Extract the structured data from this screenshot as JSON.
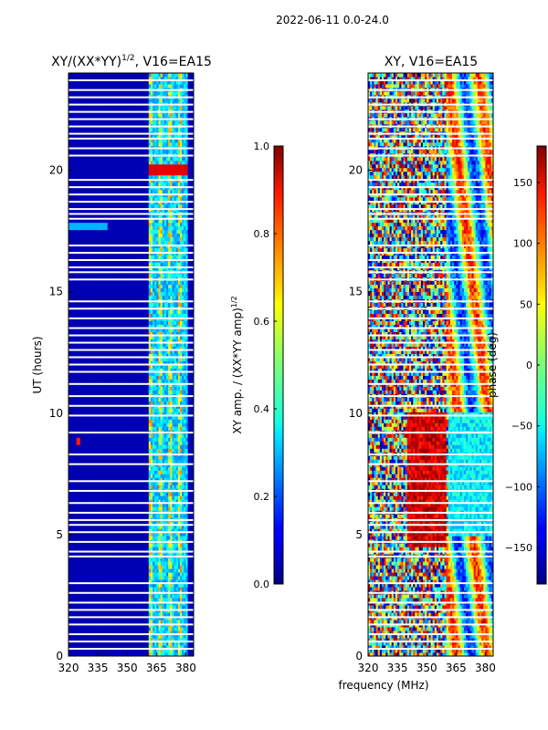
{
  "chart_data": {
    "suptitle": "2022-06-11 0.0-24.0",
    "shared_xlabel": "frequency (MHz)",
    "panels": [
      {
        "type": "heatmap",
        "title": "XY/(XX*YY)",
        "title_superscript": "1/2",
        "title_suffix": ", V16=EA15",
        "ylabel": "UT (hours)",
        "xlim": [
          320,
          384
        ],
        "ylim": [
          0,
          24
        ],
        "xticks": [
          320,
          335,
          350,
          365,
          380
        ],
        "yticks": [
          0,
          5,
          10,
          15,
          20
        ],
        "colormap": "jet",
        "colorbar": {
          "label": "XY amp. / (XX*YY amp)",
          "label_superscript": "1/2",
          "min": 0.0,
          "max": 1.0,
          "ticks": [
            "0.0",
            "0.2",
            "0.4",
            "0.6",
            "0.8",
            "1.0"
          ],
          "tick_values": [
            0.0,
            0.2,
            0.4,
            0.6,
            0.8,
            1.0
          ]
        },
        "background_value": 0.05,
        "features": [
          {
            "description": "bright vertical bands of elevated amplitude",
            "freq_start": 361,
            "freq_end": 381,
            "amplitude_range": [
              0.25,
              0.75
            ]
          },
          {
            "description": "high amplitude burst",
            "freq_start": 361,
            "freq_end": 381,
            "time_start": 19.8,
            "time_end": 20.3,
            "amplitude": 0.9
          },
          {
            "description": "broadband enhancement",
            "freq_start": 320,
            "freq_end": 340,
            "time_start": 17.5,
            "time_end": 17.9,
            "amplitude": 0.3
          },
          {
            "description": "narrow spike",
            "freq": 325,
            "time": 8.9,
            "amplitude": 0.85
          }
        ],
        "flagged_gaps_hours": [
          23.7,
          23.3,
          23.0,
          22.7,
          22.4,
          22.1,
          21.8,
          21.5,
          21.3,
          20.9,
          20.6,
          19.6,
          19.3,
          19.0,
          18.7,
          18.4,
          18.2,
          18.0,
          16.9,
          16.6,
          16.3,
          16.0,
          15.8,
          15.5,
          14.6,
          14.3,
          13.9,
          13.5,
          13.2,
          12.9,
          12.6,
          12.3,
          12.0,
          11.7,
          11.2,
          10.7,
          10.3,
          9.9,
          9.2,
          8.3,
          7.9,
          7.2,
          6.8,
          6.3,
          5.9,
          5.6,
          5.4,
          5.1,
          4.7,
          4.3,
          4.1,
          3.0,
          2.6,
          2.2,
          1.9,
          1.6,
          1.3,
          0.9,
          0.6,
          0.3
        ]
      },
      {
        "type": "heatmap",
        "title": "XY, V16=EA15",
        "ylabel": "",
        "xlim": [
          320,
          384
        ],
        "ylim": [
          0,
          24
        ],
        "xticks": [
          320,
          335,
          350,
          365,
          380
        ],
        "yticks": [
          0,
          5,
          10,
          15,
          20
        ],
        "colormap": "jet",
        "colorbar": {
          "label": "phase (deg)",
          "min": -180,
          "max": 180,
          "ticks": [
            "−150",
            "−100",
            "−50",
            "0",
            "50",
            "100",
            "150"
          ],
          "tick_values": [
            -150,
            -100,
            -50,
            0,
            50,
            100,
            150
          ]
        },
        "features": [
          {
            "description": "phase noise across full band with structured regions above 360 MHz"
          },
          {
            "description": "red phase region",
            "freq_start": 340,
            "freq_end": 360,
            "time_start": 4.5,
            "time_end": 10.0,
            "phase_deg": 150
          },
          {
            "description": "cyan/green phase region",
            "freq_start": 361,
            "freq_end": 384,
            "time_start": 5.0,
            "time_end": 10.0,
            "phase_deg": -50
          }
        ],
        "flagged_gaps_hours": [
          23.7,
          23.3,
          23.0,
          22.7,
          22.4,
          22.1,
          21.8,
          21.5,
          21.3,
          20.9,
          20.6,
          19.6,
          19.3,
          19.0,
          18.7,
          18.4,
          18.2,
          18.0,
          16.9,
          16.6,
          16.3,
          16.0,
          15.8,
          15.5,
          14.6,
          14.3,
          13.9,
          13.5,
          13.2,
          12.9,
          12.6,
          12.3,
          12.0,
          11.7,
          11.2,
          10.7,
          10.3,
          9.9,
          9.2,
          8.3,
          7.9,
          7.2,
          6.8,
          6.3,
          5.9,
          5.6,
          5.4,
          5.1,
          4.7,
          4.3,
          4.1,
          3.0,
          2.6,
          2.2,
          1.9,
          1.6,
          1.3,
          0.9,
          0.6,
          0.3
        ]
      }
    ]
  }
}
